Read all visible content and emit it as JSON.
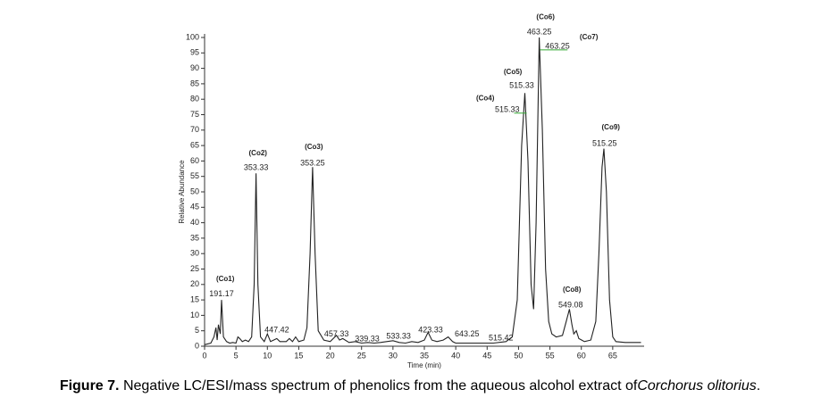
{
  "chart_data": {
    "type": "line",
    "y_label": "Relative Abundance",
    "x_label": "Time (min)",
    "xlim": [
      0,
      70
    ],
    "ylim": [
      0,
      100
    ],
    "xticks": [
      0,
      5,
      10,
      15,
      20,
      25,
      30,
      35,
      40,
      45,
      50,
      55,
      60,
      65
    ],
    "yticks": [
      0,
      5,
      10,
      15,
      20,
      25,
      30,
      35,
      40,
      45,
      50,
      55,
      60,
      65,
      70,
      75,
      80,
      85,
      90,
      95,
      100
    ],
    "series": [
      {
        "color": "#222222",
        "x": [
          0,
          1,
          1.5,
          1.8,
          2.0,
          2.2,
          2.5,
          2.7,
          3.0,
          3.5,
          4,
          4.5,
          5,
          5.3,
          5.6,
          6,
          6.5,
          7,
          7.5,
          7.9,
          8.2,
          8.5,
          8.9,
          9.5,
          10,
          10.5,
          11,
          11.5,
          12,
          13,
          13.5,
          14,
          14.5,
          15,
          15.8,
          16.3,
          16.8,
          17.2,
          17.6,
          18.1,
          19,
          20,
          21,
          21.5,
          22,
          23,
          24,
          25,
          26,
          27,
          28,
          29,
          30,
          31,
          32,
          33,
          34,
          35,
          35.6,
          36.2,
          37,
          38,
          38.8,
          39.5,
          40,
          42,
          44,
          46,
          48,
          49,
          49.8,
          50.5,
          51,
          51.5,
          52,
          52.4,
          52.8,
          53.3,
          53.8,
          54.3,
          54.8,
          55.3,
          56,
          57,
          57.6,
          58.1,
          58.5,
          58.8,
          59.2,
          59.6,
          60.5,
          61.5,
          62.3,
          62.8,
          63.3,
          63.6,
          64,
          64.5,
          65,
          65.5,
          67,
          69.5
        ],
        "values": [
          0.5,
          1,
          3,
          6,
          2,
          7,
          4,
          15,
          3,
          1.5,
          1,
          1.2,
          1,
          3,
          2.5,
          1.5,
          2,
          1.5,
          3,
          20,
          56,
          20,
          3,
          1.5,
          4,
          1.5,
          2,
          2.5,
          1.5,
          1.5,
          2.5,
          1.5,
          3,
          1.5,
          2,
          6,
          30,
          58,
          30,
          5,
          2,
          1.5,
          3.5,
          2,
          2.5,
          1.2,
          1.5,
          1,
          1.2,
          1,
          1.2,
          1.5,
          1.8,
          1.2,
          1,
          1.5,
          1.2,
          2,
          4.5,
          2,
          1.5,
          2,
          3,
          1.5,
          1,
          1,
          1,
          1,
          1.5,
          3,
          15,
          65,
          82,
          60,
          20,
          12,
          40,
          100,
          70,
          25,
          8,
          4,
          3,
          3.5,
          8,
          12,
          7,
          4,
          5,
          2.5,
          1.5,
          2,
          8,
          30,
          58,
          64,
          50,
          15,
          3,
          1.5,
          1.2,
          1.2
        ]
      }
    ],
    "annotations": [
      {
        "text": "(Co1)",
        "x": 3.3,
        "y": 21.7
      },
      {
        "text": "191.17",
        "x": 2.7,
        "y": 16.8
      },
      {
        "text": "(Co2)",
        "x": 8.5,
        "y": 62.4
      },
      {
        "text": "353.33",
        "x": 8.2,
        "y": 57.8
      },
      {
        "text": "(Co3)",
        "x": 17.4,
        "y": 64.5
      },
      {
        "text": "353.25",
        "x": 17.2,
        "y": 59.2
      },
      {
        "text": "447.42",
        "x": 11.5,
        "y": 5.2
      },
      {
        "text": "457.33",
        "x": 21,
        "y": 3.8
      },
      {
        "text": "339.33",
        "x": 25.9,
        "y": 2.3
      },
      {
        "text": "533.33",
        "x": 30.9,
        "y": 3.2
      },
      {
        "text": "423.33",
        "x": 36,
        "y": 5.2
      },
      {
        "text": "643.25",
        "x": 41.8,
        "y": 3.8
      },
      {
        "text": "515.42",
        "x": 47.2,
        "y": 2.6
      },
      {
        "text": "(Co4)",
        "x": 44.7,
        "y": 80.3
      },
      {
        "text": "515.33",
        "x": 48.2,
        "y": 76.6
      },
      {
        "text": "(Co5)",
        "x": 49.1,
        "y": 88.7
      },
      {
        "text": "515.33",
        "x": 50.5,
        "y": 84.4
      },
      {
        "text": "(Co6)",
        "x": 54.3,
        "y": 106.6
      },
      {
        "text": "463.25",
        "x": 53.3,
        "y": 101.7
      },
      {
        "text": "(Co7)",
        "x": 61.2,
        "y": 100
      },
      {
        "text": "463.25",
        "x": 56.2,
        "y": 97.1
      },
      {
        "text": "(Co8)",
        "x": 58.5,
        "y": 18.2
      },
      {
        "text": "549.08",
        "x": 58.3,
        "y": 13.3
      },
      {
        "text": "(Co9)",
        "x": 64.7,
        "y": 70.8
      },
      {
        "text": "515.25",
        "x": 63.7,
        "y": 65.6
      }
    ]
  },
  "caption": {
    "label": "Figure 7.",
    "text": " Negative LC/ESI/mass spectrum of phenolics from the aqueous alcohol extract of",
    "species": "Corchorus olitorius",
    "end": "."
  }
}
